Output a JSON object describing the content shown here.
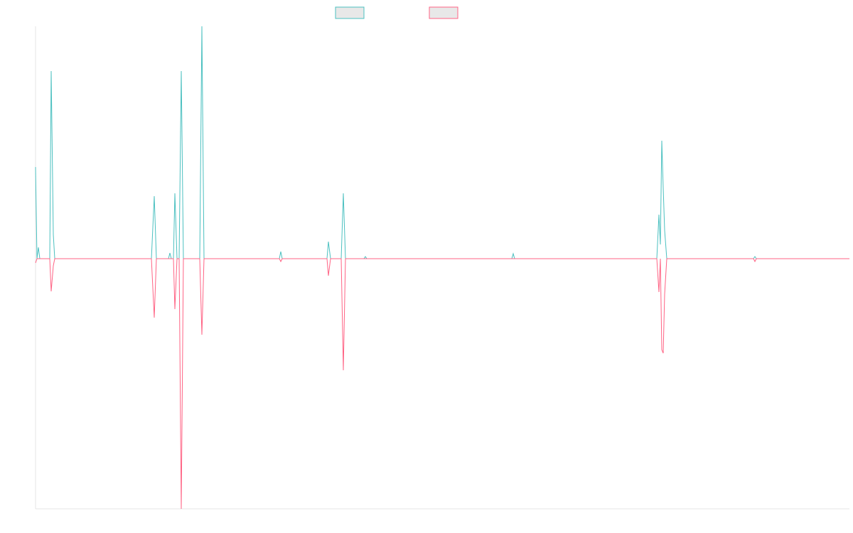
{
  "chart_data": {
    "type": "line",
    "x": [
      0,
      2,
      4,
      6,
      20,
      22,
      25,
      27,
      163,
      167,
      170,
      187,
      189,
      191,
      194,
      196,
      199,
      202,
      205,
      208,
      231,
      234,
      237,
      343,
      345,
      347,
      410,
      412,
      415,
      430,
      433,
      436,
      462,
      464,
      466,
      670,
      672,
      674,
      874,
      877,
      879,
      881,
      883,
      885,
      888,
      1010,
      1012,
      1014,
      1145
    ],
    "series": [
      {
        "color": "#4bc0c0",
        "values": [
          12.9,
          0,
          1.6,
          0,
          0,
          26.4,
          3.4,
          0,
          0,
          8.8,
          0,
          0,
          0.8,
          0,
          0,
          9.2,
          0,
          0,
          26.4,
          0,
          0,
          32.7,
          0,
          0,
          1,
          0,
          0,
          2.4,
          0,
          0,
          9.2,
          0,
          0,
          0.3,
          0,
          0,
          0.7,
          0,
          0,
          6.2,
          2,
          16.6,
          10,
          4,
          0,
          0,
          0.3,
          0,
          0
        ]
      },
      {
        "color": "#ff6384",
        "values": [
          -0.6,
          0,
          0,
          0,
          0,
          -4.6,
          -1,
          0,
          0,
          -8.3,
          0,
          0,
          0,
          0,
          0,
          -7.1,
          0,
          0,
          -35.2,
          0,
          0,
          -10.7,
          0,
          0,
          -0.4,
          0,
          0,
          -2.4,
          0,
          0,
          -15.7,
          0,
          0,
          0,
          0,
          0,
          0,
          0,
          0,
          -4.7,
          0,
          -12.8,
          -13.3,
          -5,
          0,
          0,
          -0.4,
          0,
          0
        ]
      }
    ],
    "xlim": [
      0,
      1145
    ],
    "ylim": [
      -35.2,
      32.7
    ],
    "grid": false
  }
}
